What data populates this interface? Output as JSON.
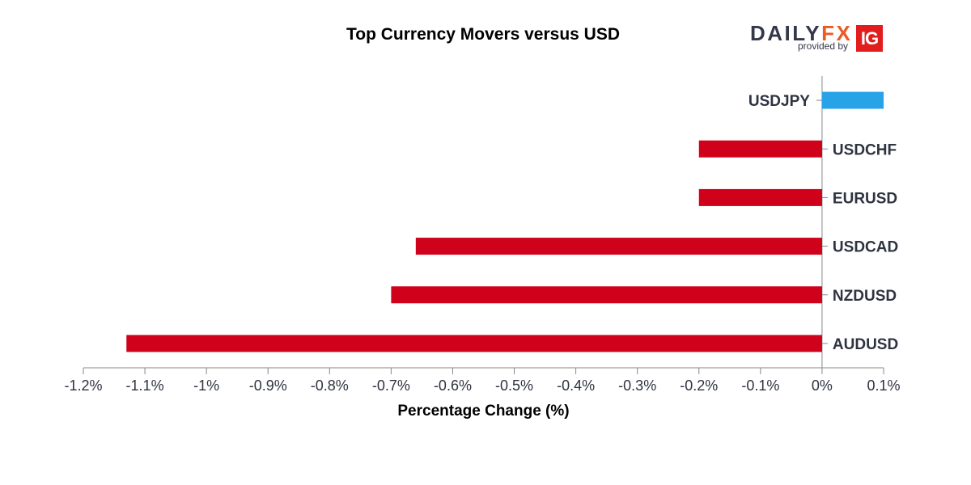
{
  "logo": {
    "daily": "DAILY",
    "fx": "FX",
    "provided_by": "provided by",
    "ig": "IG"
  },
  "chart_data": {
    "type": "bar",
    "orientation": "horizontal",
    "title": "Top Currency Movers versus USD",
    "xlabel": "Percentage Change (%)",
    "ylabel": "",
    "categories": [
      "USDJPY",
      "USDCHF",
      "EURUSD",
      "USDCAD",
      "NZDUSD",
      "AUDUSD"
    ],
    "values": [
      0.1,
      -0.2,
      -0.2,
      -0.66,
      -0.7,
      -1.13
    ],
    "xlim": [
      -1.2,
      0.1
    ],
    "ticks": [
      -1.2,
      -1.1,
      -1.0,
      -0.9,
      -0.8,
      -0.7,
      -0.6,
      -0.5,
      -0.4,
      -0.3,
      -0.2,
      -0.1,
      0,
      0.1
    ],
    "tick_labels": [
      "-1.2%",
      "-1.1%",
      "-1%",
      "-0.9%",
      "-0.8%",
      "-0.7%",
      "-0.6%",
      "-0.5%",
      "-0.4%",
      "-0.3%",
      "-0.2%",
      "-0.1%",
      "0%",
      "0.1%"
    ],
    "grid": false,
    "legend": "none",
    "colors": {
      "positive": "#29a3e8",
      "negative": "#d0021b",
      "axis": "#888888",
      "label": "#2e3340"
    }
  }
}
